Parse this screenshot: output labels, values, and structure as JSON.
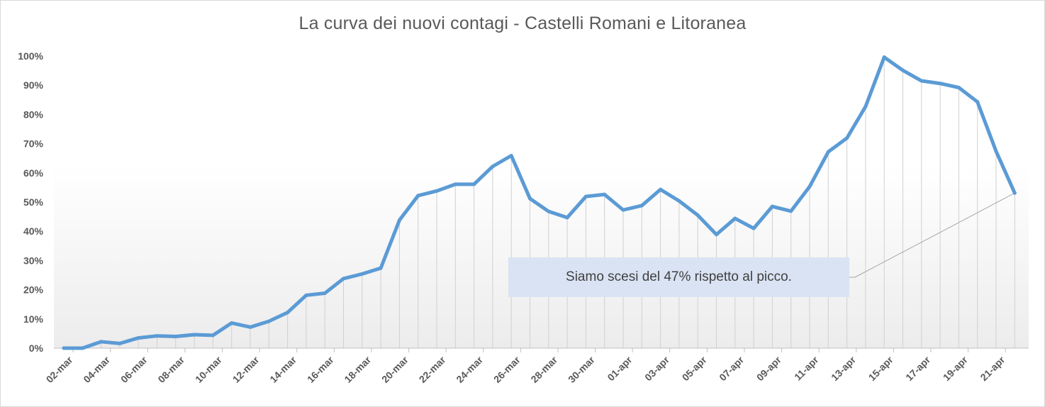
{
  "chart_data": {
    "type": "line",
    "title": "La curva dei nuovi contagi - Castelli  Romani  e Litoranea",
    "xlabel": "",
    "ylabel": "",
    "ylim": [
      0,
      100
    ],
    "y_ticks": [
      "0%",
      "10%",
      "20%",
      "30%",
      "40%",
      "50%",
      "60%",
      "70%",
      "80%",
      "90%",
      "100%"
    ],
    "x_tick_labels": [
      "02-mar",
      "04-mar",
      "06-mar",
      "08-mar",
      "10-mar",
      "12-mar",
      "14-mar",
      "16-mar",
      "18-mar",
      "20-mar",
      "22-mar",
      "24-mar",
      "26-mar",
      "28-mar",
      "30-mar",
      "01-apr",
      "03-apr",
      "05-apr",
      "07-apr",
      "09-apr",
      "11-apr",
      "13-apr",
      "15-apr",
      "17-apr",
      "19-apr",
      "21-apr"
    ],
    "x": [
      "02-mar",
      "03-mar",
      "04-mar",
      "05-mar",
      "06-mar",
      "07-mar",
      "08-mar",
      "09-mar",
      "10-mar",
      "11-mar",
      "12-mar",
      "13-mar",
      "14-mar",
      "15-mar",
      "16-mar",
      "17-mar",
      "18-mar",
      "19-mar",
      "20-mar",
      "21-mar",
      "22-mar",
      "23-mar",
      "24-mar",
      "25-mar",
      "26-mar",
      "27-mar",
      "28-mar",
      "29-mar",
      "30-mar",
      "31-mar",
      "01-apr",
      "02-apr",
      "03-apr",
      "04-apr",
      "05-apr",
      "06-apr",
      "07-apr",
      "08-apr",
      "09-apr",
      "10-apr",
      "11-apr",
      "12-apr",
      "13-apr",
      "14-apr",
      "15-apr",
      "16-apr",
      "17-apr",
      "18-apr",
      "19-apr",
      "20-apr",
      "21-apr",
      "22-apr"
    ],
    "series": [
      {
        "values": [
          0,
          0,
          2.2,
          1.6,
          3.5,
          4.2,
          4,
          4.6,
          4.4,
          8.6,
          7.2,
          9.2,
          12.2,
          18.1,
          18.8,
          23.8,
          25.4,
          27.4,
          43.8,
          52.2,
          53.8,
          56.1,
          56.1,
          62.2,
          65.9,
          51.2,
          46.8,
          44.7,
          51.9,
          52.6,
          47.3,
          48.8,
          54.3,
          50.4,
          45.5,
          38.9,
          44.4,
          41,
          48.5,
          46.9,
          55.3,
          67.2,
          71.9,
          82.7,
          99.6,
          95.1,
          91.5,
          90.6,
          89.2,
          84.3,
          67.4,
          53.1
        ],
        "color": "#5b9bd5"
      }
    ],
    "annotation": "Siamo scesi del 47% rispetto al picco.",
    "grid": "drop-lines"
  }
}
